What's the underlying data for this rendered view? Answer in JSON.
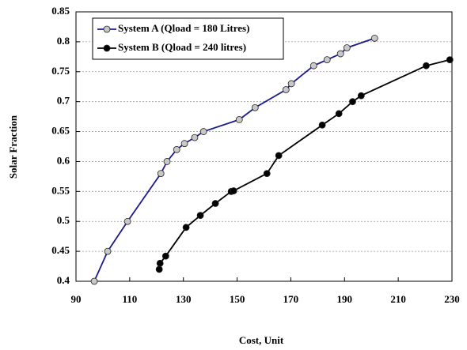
{
  "chart_data": {
    "type": "line",
    "x_label": "Cost, Unit",
    "y_label": "Solar Fraction",
    "xlim": [
      90,
      230
    ],
    "xticks": [
      90,
      110,
      130,
      150,
      170,
      190,
      210,
      230
    ],
    "ylim": [
      0.4,
      0.85
    ],
    "yticks": [
      0.4,
      0.45,
      0.5,
      0.55,
      0.6,
      0.65,
      0.7,
      0.75,
      0.8,
      0.85
    ],
    "grid": true,
    "legend": "upper left",
    "series": [
      {
        "name": "System A (Qload = 180 Litres)",
        "color": "#1c1c8c",
        "marker_color": "#c8c8c8",
        "x": [
          96.8,
          101.8,
          109.2,
          121.6,
          123.9,
          127.5,
          130.4,
          134.2,
          137.5,
          150.8,
          156.7,
          168.2,
          170.2,
          178.5,
          183.5,
          188.5,
          190.9,
          201.2
        ],
        "values": [
          0.4,
          0.45,
          0.5,
          0.58,
          0.6,
          0.62,
          0.63,
          0.64,
          0.65,
          0.67,
          0.69,
          0.72,
          0.73,
          0.76,
          0.77,
          0.78,
          0.79,
          0.806
        ]
      },
      {
        "name": "System B (Qload = 240 litres)",
        "color": "#000000",
        "marker_color": "#000000",
        "x": [
          121.0,
          121.3,
          123.4,
          131.0,
          136.3,
          141.9,
          147.8,
          148.7,
          161.1,
          165.5,
          181.7,
          187.9,
          193.0,
          196.2,
          220.4,
          229.2
        ],
        "values": [
          0.42,
          0.43,
          0.442,
          0.49,
          0.51,
          0.53,
          0.55,
          0.551,
          0.58,
          0.61,
          0.661,
          0.68,
          0.7,
          0.71,
          0.76,
          0.77
        ]
      }
    ]
  }
}
